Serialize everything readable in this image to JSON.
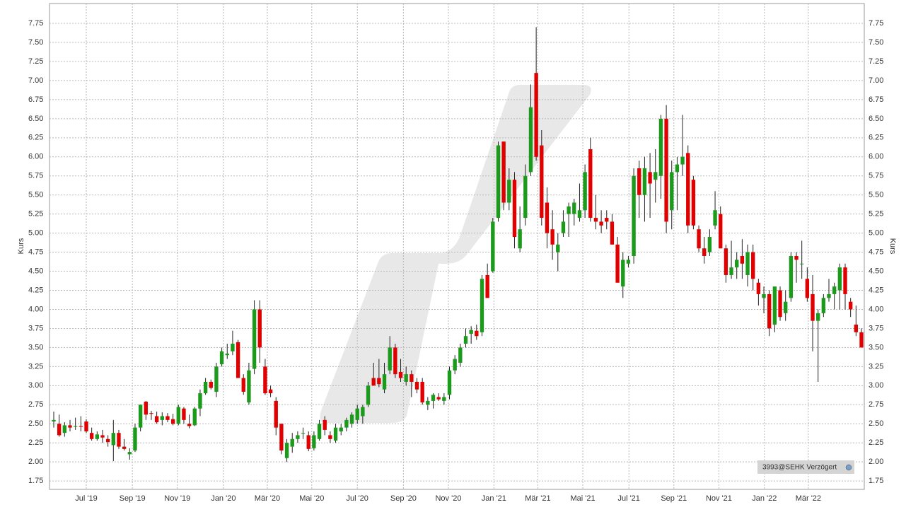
{
  "chart_data": {
    "type": "candlestick",
    "y_label": "Kurs",
    "source_label": "3993@SEHK Verzögert",
    "up_color": "#1b9a1b",
    "down_color": "#e00000",
    "grid": true,
    "xlim": [
      0,
      149
    ],
    "xticks": [
      {
        "value": 6,
        "label": "Jul '19"
      },
      {
        "value": 14.5,
        "label": "Sep '19"
      },
      {
        "value": 22.8,
        "label": "Nov '19"
      },
      {
        "value": 31.3,
        "label": "Jan '20"
      },
      {
        "value": 39.4,
        "label": "Mär '20"
      },
      {
        "value": 47.6,
        "label": "Mai '20"
      },
      {
        "value": 56,
        "label": "Jul '20"
      },
      {
        "value": 64.5,
        "label": "Sep '20"
      },
      {
        "value": 72.8,
        "label": "Nov '20"
      },
      {
        "value": 81.2,
        "label": "Jan '21"
      },
      {
        "value": 89.3,
        "label": "Mär '21"
      },
      {
        "value": 97.6,
        "label": "Mai '21"
      },
      {
        "value": 106.1,
        "label": "Jul '21"
      },
      {
        "value": 114.4,
        "label": "Sep '21"
      },
      {
        "value": 122.7,
        "label": "Nov '21"
      },
      {
        "value": 131.1,
        "label": "Jan '22"
      },
      {
        "value": 139.2,
        "label": "Mär '22"
      }
    ],
    "ylim": [
      1.64,
      8.01
    ],
    "yticks": [
      1.75,
      {
        "value": 2,
        "label": "2.00"
      },
      2.25,
      {
        "value": 2.5,
        "label": "2.50"
      },
      2.75,
      {
        "value": 3,
        "label": "3.00"
      },
      3.25,
      {
        "value": 3.5,
        "label": "3.50"
      },
      3.75,
      {
        "value": 4,
        "label": "4.00"
      },
      4.25,
      {
        "value": 4.5,
        "label": "4.50"
      },
      4.75,
      {
        "value": 5,
        "label": "5.00"
      },
      5.25,
      {
        "value": 5.5,
        "label": "5.50"
      },
      5.75,
      {
        "value": 6,
        "label": "6.00"
      },
      6.25,
      {
        "value": 6.5,
        "label": "6.50"
      },
      6.75,
      {
        "value": 7,
        "label": "7.00"
      },
      7.25,
      {
        "value": 7.5,
        "label": "7.50"
      },
      7.75
    ],
    "open": [
      2.53,
      2.5,
      2.38,
      2.48,
      2.46,
      2.47,
      2.53,
      2.38,
      2.3,
      2.35,
      2.3,
      2.22,
      2.38,
      2.2,
      2.1,
      2.15,
      2.45,
      2.79,
      2.64,
      2.6,
      2.55,
      2.6,
      2.56,
      2.5,
      2.7,
      2.5,
      2.48,
      2.7,
      2.9,
      3.05,
      2.92,
      3.28,
      3.4,
      3.45,
      3.57,
      3.1,
      2.78,
      3.22,
      4.0,
      3.25,
      2.95,
      2.8,
      2.5,
      2.05,
      2.2,
      2.3,
      2.38,
      2.35,
      2.18,
      2.3,
      2.55,
      2.35,
      2.28,
      2.4,
      2.45,
      2.5,
      2.55,
      2.6,
      2.75,
      3.1,
      3.1,
      2.95,
      3.2,
      3.5,
      3.18,
      3.05,
      3.15,
      3.05,
      3.05,
      2.75,
      2.8,
      2.85,
      2.8,
      2.88,
      3.2,
      3.3,
      3.55,
      3.68,
      3.72,
      3.7,
      4.45,
      4.5,
      5.2,
      6.2,
      5.4,
      5.7,
      4.8,
      5.2,
      5.8,
      7.1,
      6.15,
      5.4,
      5.05,
      4.75,
      5.0,
      5.25,
      5.25,
      5.2,
      5.3,
      6.1,
      5.2,
      5.15,
      5.2,
      5.15,
      4.85,
      4.3,
      4.6,
      4.7,
      5.85,
      5.5,
      5.8,
      5.7,
      5.75,
      6.5,
      5.3,
      5.8,
      5.9,
      6.05,
      5.7,
      5.05,
      4.8,
      4.75,
      5.1,
      5.25,
      4.8,
      4.45,
      4.55,
      4.7,
      4.45,
      4.75,
      4.35,
      4.15,
      4.2,
      3.8,
      4.25,
      3.95,
      4.15,
      4.7,
      4.6,
      4.4,
      4.2,
      3.85,
      3.95,
      4.15,
      4.2,
      4.25,
      4.55,
      4.1,
      3.8,
      3.7
    ],
    "high": [
      2.66,
      2.62,
      2.52,
      2.55,
      2.58,
      2.6,
      2.56,
      2.45,
      2.4,
      2.42,
      2.35,
      2.55,
      2.42,
      2.3,
      2.18,
      2.5,
      2.75,
      2.8,
      2.67,
      2.66,
      2.65,
      2.64,
      2.63,
      2.75,
      2.72,
      2.62,
      2.72,
      2.95,
      3.1,
      3.08,
      3.3,
      3.5,
      3.55,
      3.72,
      3.6,
      3.15,
      3.3,
      4.12,
      4.12,
      3.35,
      3.0,
      2.85,
      2.5,
      2.3,
      2.38,
      2.4,
      2.45,
      2.4,
      2.4,
      2.55,
      2.6,
      2.4,
      2.5,
      2.5,
      2.58,
      2.65,
      2.75,
      2.75,
      3.05,
      3.3,
      3.35,
      3.3,
      3.65,
      3.55,
      3.35,
      3.25,
      3.2,
      3.1,
      3.1,
      2.85,
      2.9,
      2.9,
      2.9,
      3.25,
      3.4,
      3.55,
      3.75,
      3.78,
      3.8,
      4.45,
      4.6,
      5.2,
      6.2,
      6.2,
      5.85,
      5.8,
      5.35,
      5.9,
      6.95,
      7.7,
      6.35,
      5.6,
      5.3,
      5.0,
      5.3,
      5.4,
      5.45,
      5.65,
      5.9,
      6.25,
      5.5,
      5.3,
      5.3,
      5.25,
      4.95,
      4.75,
      4.7,
      5.85,
      5.95,
      6.0,
      6.05,
      6.1,
      6.55,
      6.68,
      5.95,
      6.0,
      6.55,
      6.15,
      5.75,
      5.1,
      4.95,
      5.05,
      5.55,
      5.35,
      4.85,
      4.9,
      4.75,
      4.92,
      4.85,
      4.85,
      4.4,
      4.3,
      4.25,
      4.25,
      4.3,
      4.25,
      4.75,
      4.75,
      4.9,
      4.55,
      4.45,
      4.0,
      4.2,
      4.4,
      4.35,
      4.6,
      4.6,
      4.15,
      4.05,
      3.75
    ],
    "low": [
      2.45,
      2.33,
      2.33,
      2.4,
      2.42,
      2.4,
      2.38,
      2.28,
      2.28,
      2.25,
      2.2,
      2.01,
      2.17,
      2.15,
      2.03,
      2.13,
      2.4,
      2.55,
      2.55,
      2.5,
      2.48,
      2.52,
      2.48,
      2.48,
      2.5,
      2.44,
      2.47,
      2.6,
      2.88,
      2.95,
      2.85,
      3.25,
      3.35,
      3.4,
      3.1,
      2.88,
      2.75,
      3.15,
      3.3,
      2.88,
      2.85,
      2.35,
      2.1,
      2.0,
      2.12,
      2.25,
      2.3,
      2.14,
      2.15,
      2.28,
      2.35,
      2.25,
      2.25,
      2.35,
      2.4,
      2.45,
      2.5,
      2.5,
      2.72,
      3.0,
      2.98,
      2.9,
      3.15,
      3.1,
      3.05,
      3.0,
      2.85,
      2.9,
      2.75,
      2.68,
      2.7,
      2.8,
      2.75,
      2.82,
      3.15,
      3.25,
      3.5,
      3.55,
      3.6,
      3.65,
      4.15,
      4.48,
      5.15,
      5.3,
      5.3,
      4.8,
      4.75,
      5.1,
      5.75,
      5.95,
      5.1,
      4.8,
      4.65,
      4.5,
      4.95,
      4.95,
      5.1,
      5.15,
      5.2,
      5.15,
      5.05,
      5.0,
      5.05,
      4.85,
      4.35,
      4.15,
      4.55,
      4.6,
      5.2,
      5.15,
      5.2,
      5.4,
      5.45,
      5.0,
      5.05,
      5.3,
      5.75,
      5.0,
      5.05,
      4.75,
      4.6,
      4.7,
      5.05,
      4.8,
      4.35,
      4.4,
      4.4,
      4.4,
      4.3,
      4.25,
      4.05,
      3.95,
      3.65,
      3.7,
      3.85,
      3.85,
      4.1,
      4.35,
      4.4,
      4.1,
      3.45,
      3.05,
      3.9,
      4.1,
      4.0,
      4.0,
      4.0,
      3.9,
      3.65,
      3.5
    ],
    "close": [
      2.55,
      2.35,
      2.48,
      2.45,
      2.47,
      2.46,
      2.4,
      2.3,
      2.36,
      2.32,
      2.26,
      2.38,
      2.2,
      2.17,
      2.13,
      2.45,
      2.75,
      2.62,
      2.63,
      2.52,
      2.6,
      2.55,
      2.5,
      2.72,
      2.55,
      2.47,
      2.7,
      2.9,
      3.05,
      2.97,
      3.25,
      3.45,
      3.42,
      3.55,
      3.1,
      2.92,
      3.2,
      4.0,
      3.5,
      2.9,
      2.9,
      2.45,
      2.15,
      2.25,
      2.3,
      2.35,
      2.38,
      2.17,
      2.35,
      2.5,
      2.42,
      2.3,
      2.45,
      2.45,
      2.55,
      2.62,
      2.7,
      2.72,
      3.0,
      3.0,
      3.02,
      3.15,
      3.5,
      3.15,
      3.1,
      3.15,
      3.05,
      2.95,
      2.78,
      2.8,
      2.88,
      2.82,
      2.85,
      3.2,
      3.35,
      3.5,
      3.65,
      3.73,
      3.65,
      4.4,
      4.15,
      5.15,
      6.15,
      5.4,
      5.7,
      4.95,
      5.05,
      5.75,
      6.65,
      6.0,
      5.2,
      5.0,
      4.85,
      4.85,
      5.15,
      5.35,
      5.4,
      5.3,
      5.8,
      5.2,
      5.15,
      5.1,
      5.15,
      4.85,
      4.35,
      4.65,
      4.65,
      5.75,
      5.5,
      5.85,
      5.65,
      5.8,
      6.5,
      5.15,
      5.8,
      5.9,
      6.0,
      5.1,
      5.1,
      4.8,
      4.7,
      4.95,
      5.3,
      4.8,
      4.45,
      4.55,
      4.65,
      4.6,
      4.75,
      4.4,
      4.2,
      4.2,
      3.75,
      4.3,
      3.9,
      4.1,
      4.7,
      4.65,
      4.6,
      4.15,
      3.85,
      3.95,
      4.15,
      4.2,
      4.3,
      4.55,
      4.2,
      4.0,
      3.7,
      3.5
    ]
  }
}
